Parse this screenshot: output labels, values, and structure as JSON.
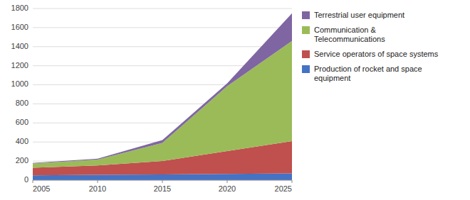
{
  "chart_data": {
    "type": "area",
    "stacked": true,
    "x": [
      2005,
      2010,
      2015,
      2020,
      2025
    ],
    "xlim": [
      2005,
      2025
    ],
    "xticks": [
      2005,
      2010,
      2015,
      2020,
      2025
    ],
    "ylim": [
      0,
      1800
    ],
    "yticks": [
      0,
      200,
      400,
      600,
      800,
      1000,
      1200,
      1400,
      1600,
      1800
    ],
    "grid": true,
    "legend": "right",
    "series": [
      {
        "name": "Production of rocket and space\nequipment",
        "color": "#4472C4",
        "values": [
          50,
          55,
          60,
          65,
          70
        ]
      },
      {
        "name": "Service operators of space systems",
        "color": "#C0504D",
        "values": [
          80,
          100,
          140,
          240,
          340
        ]
      },
      {
        "name": "Communication &\nTelecommunications",
        "color": "#9BBB59",
        "values": [
          45,
          60,
          190,
          680,
          1050
        ]
      },
      {
        "name": "Terrestrial user equipment",
        "color": "#7F66A2",
        "values": [
          5,
          10,
          30,
          30,
          290
        ]
      }
    ]
  }
}
